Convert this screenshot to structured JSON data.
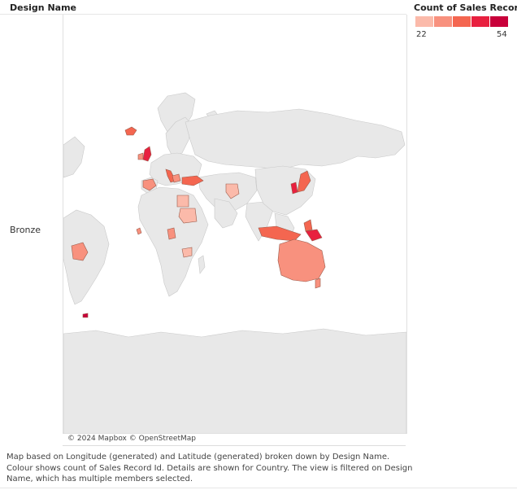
{
  "header": {
    "column_title": "Design Name"
  },
  "row": {
    "label": "Bronze"
  },
  "legend": {
    "title": "Count of Sales Record Id",
    "min": "22",
    "max": "54",
    "swatches": [
      "#fbbaaa",
      "#f8917e",
      "#f46650",
      "#e8203f",
      "#c8003a"
    ]
  },
  "map": {
    "attribution": "© 2024 Mapbox © OpenStreetMap",
    "land_color": "#e8e8e8",
    "ocean_color": "#ffffff"
  },
  "caption": {
    "line1": "Map based on Longitude (generated) and Latitude (generated) broken down by Design Name.",
    "line2": "Colour shows count of Sales Record Id.  Details are shown for Country. The view is filtered on Design",
    "line3": "Name, which has multiple members selected."
  }
}
